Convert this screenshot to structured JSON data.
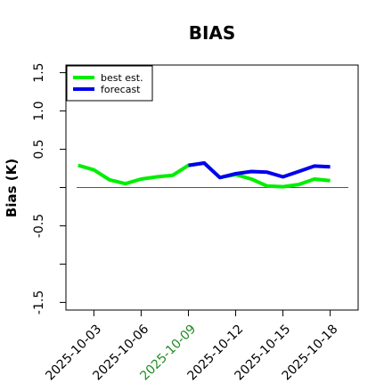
{
  "chart_data": {
    "type": "line",
    "title": "BIAS",
    "xlabel": "",
    "ylabel": "Bias (K)",
    "ylim": [
      -1.6,
      1.6
    ],
    "xlim": [
      "2025-10-01",
      "2025-10-20"
    ],
    "grid": false,
    "legend_position": "top-left",
    "y_ticks": [
      -1.5,
      -1.0,
      -0.5,
      0.0,
      0.5,
      1.0,
      1.5
    ],
    "y_tick_labels": [
      "-1.5",
      "",
      "-0.5",
      "",
      "0.5",
      "1.0",
      "1.5"
    ],
    "x_ticks": [
      "2025-10-03",
      "2025-10-06",
      "2025-10-09",
      "2025-10-12",
      "2025-10-15",
      "2025-10-18"
    ],
    "x_tick_labels": [
      "2025-10-03",
      "2025-10-06",
      "2025-10-09",
      "2025-10-12",
      "2025-10-15",
      "2025-10-18"
    ],
    "x_tick_label_colors": [
      "#000000",
      "#000000",
      "#228B22",
      "#000000",
      "#000000",
      "#000000"
    ],
    "reference_line": 0.0,
    "series": [
      {
        "name": "best est.",
        "color": "#00ee00",
        "x": [
          "2025-10-02",
          "2025-10-03",
          "2025-10-04",
          "2025-10-05",
          "2025-10-06",
          "2025-10-07",
          "2025-10-08",
          "2025-10-09",
          "2025-10-10",
          "2025-10-11",
          "2025-10-12",
          "2025-10-13",
          "2025-10-14",
          "2025-10-15",
          "2025-10-16",
          "2025-10-17",
          "2025-10-18"
        ],
        "values": [
          0.29,
          0.23,
          0.1,
          0.05,
          0.11,
          0.14,
          0.16,
          0.29,
          0.32,
          0.13,
          0.17,
          0.11,
          0.02,
          0.01,
          0.04,
          0.11,
          0.09
        ]
      },
      {
        "name": "forecast",
        "color": "#0000ee",
        "x": [
          "2025-10-09",
          "2025-10-10",
          "2025-10-11",
          "2025-10-12",
          "2025-10-13",
          "2025-10-14",
          "2025-10-15",
          "2025-10-16",
          "2025-10-17",
          "2025-10-18"
        ],
        "values": [
          0.29,
          0.32,
          0.13,
          0.18,
          0.21,
          0.2,
          0.14,
          0.21,
          0.28,
          0.27
        ]
      }
    ]
  }
}
